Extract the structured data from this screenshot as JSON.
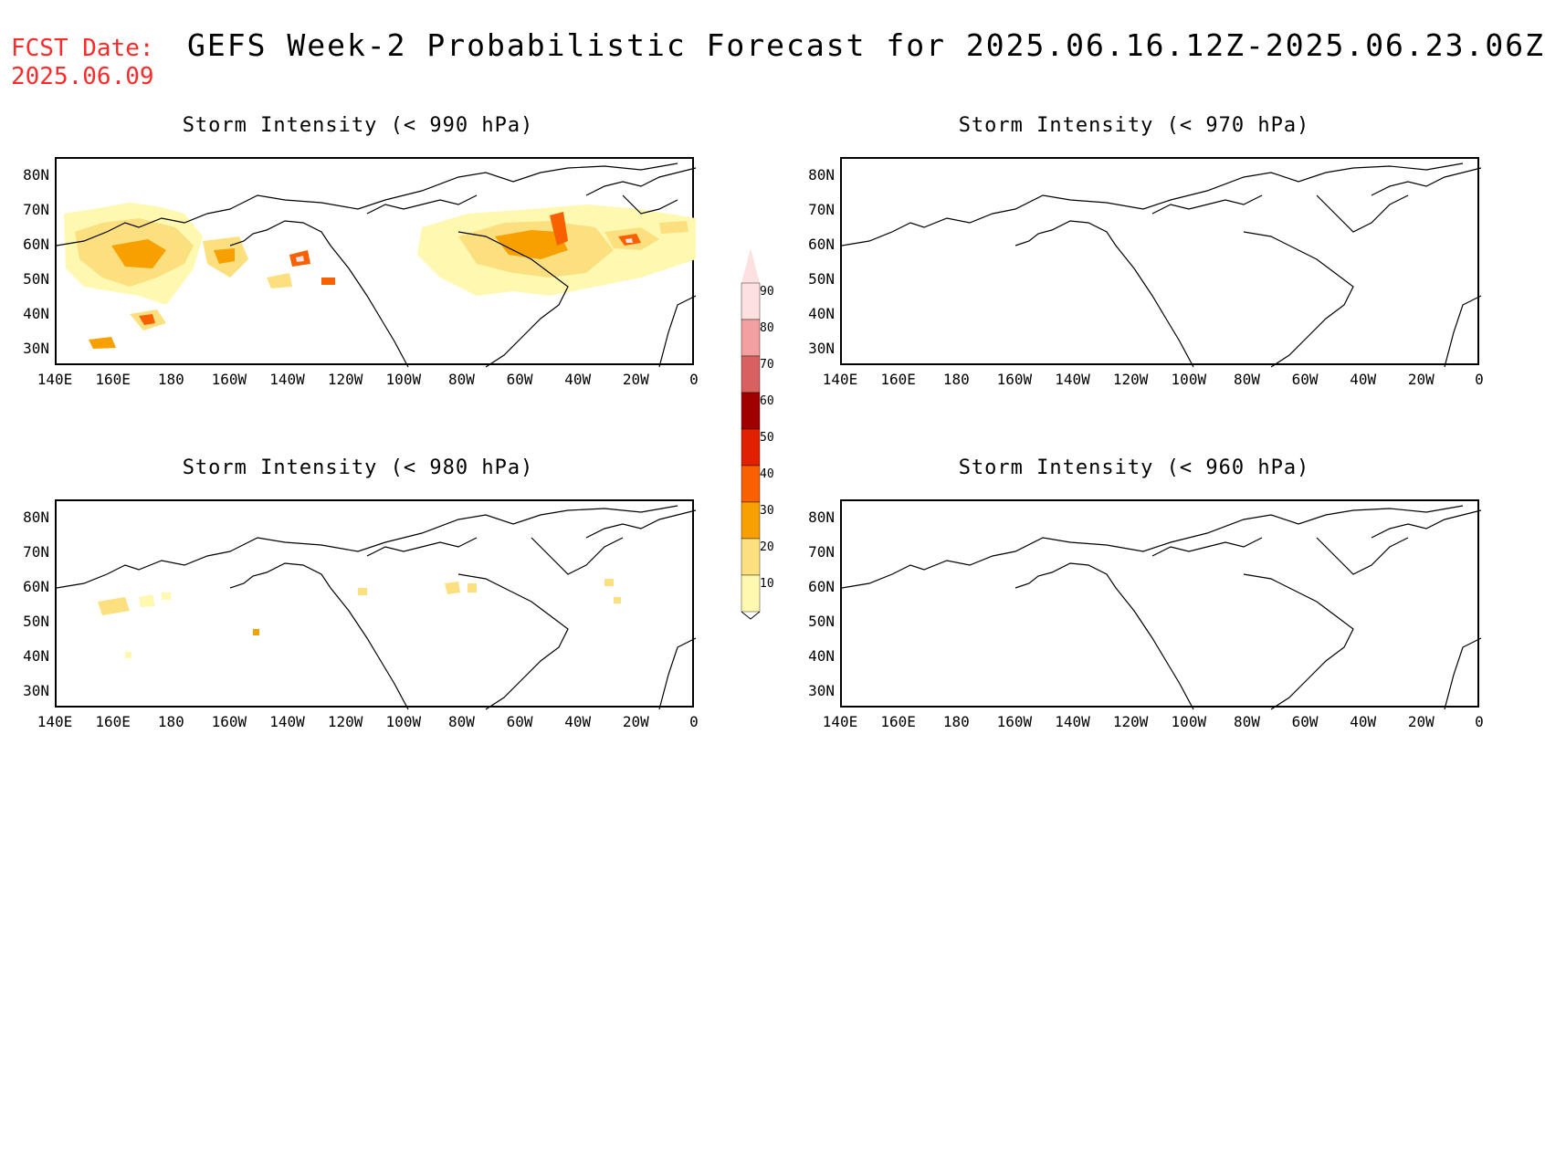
{
  "header": {
    "fcst_line1": "FCST Date:",
    "fcst_line2": "2025.06.09",
    "title": "GEFS Week-2 Probabilistic Forecast for 2025.06.16.12Z-2025.06.23.06Z"
  },
  "panels": [
    {
      "id": "p990",
      "title": "Storm Intensity (< 990 hPa)"
    },
    {
      "id": "p970",
      "title": "Storm Intensity (< 970 hPa)"
    },
    {
      "id": "p980",
      "title": "Storm Intensity (< 980 hPa)"
    },
    {
      "id": "p960",
      "title": "Storm Intensity (< 960 hPa)"
    }
  ],
  "axes": {
    "lat_labels": [
      "80N",
      "70N",
      "60N",
      "50N",
      "40N",
      "30N"
    ],
    "lon_labels": [
      "140E",
      "160E",
      "180",
      "160W",
      "140W",
      "120W",
      "100W",
      "80W",
      "60W",
      "40W",
      "20W",
      "0"
    ]
  },
  "colorbar": {
    "labels": [
      "90",
      "80",
      "70",
      "60",
      "50",
      "40",
      "30",
      "20",
      "10"
    ],
    "colors": [
      "#fde0e0",
      "#f4a0a0",
      "#d86060",
      "#a00000",
      "#e02000",
      "#f86000",
      "#f8a000",
      "#fce080",
      "#fff8b0"
    ]
  },
  "colors": {
    "fcst_date": "#ff2a2a",
    "prob_10": "#fff8b0",
    "prob_20": "#fce080",
    "prob_30": "#f8a000",
    "prob_40": "#f86000",
    "prob_50": "#e02000",
    "prob_60": "#a00000"
  }
}
